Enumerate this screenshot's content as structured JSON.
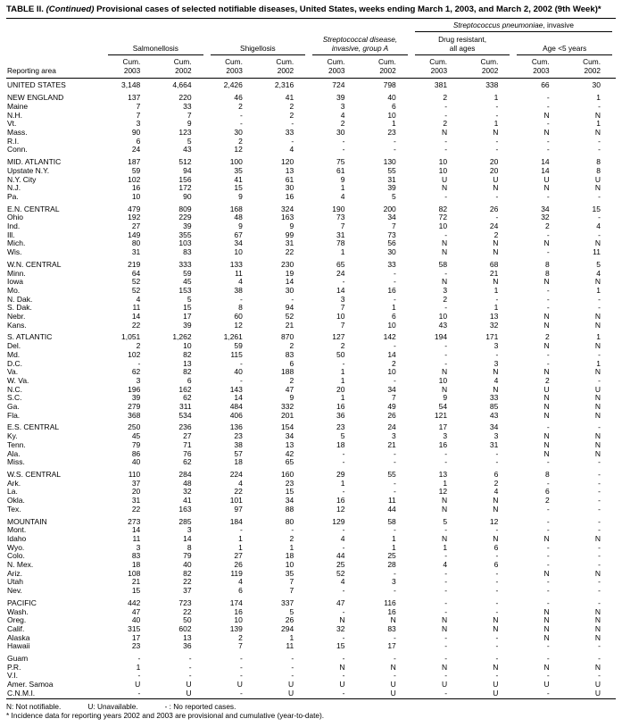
{
  "title": {
    "table_label": "TABLE II.",
    "continued": "(Continued)",
    "rest": "Provisional cases of selected notifiable diseases, United States, weeks ending March 1, 2003, and March 2, 2002 (9th Week)*"
  },
  "header": {
    "reporting_area": "Reporting area",
    "pneumo": {
      "italic": "Streptococcus pneumoniae",
      "rest": ", invasive"
    },
    "groups": [
      {
        "line1": "Salmonellosis"
      },
      {
        "line1": "Shigellosis"
      },
      {
        "line1": "Streptococcal disease,",
        "line2": "invasive, group A"
      },
      {
        "line1": "Drug resistant,",
        "line2": "all ages"
      },
      {
        "line1": "Age <5 years"
      }
    ],
    "cum": "Cum.",
    "years": [
      "2003",
      "2002"
    ]
  },
  "rows": [
    {
      "a": "UNITED STATES",
      "v": [
        "3,148",
        "4,664",
        "2,426",
        "2,316",
        "724",
        "798",
        "381",
        "338",
        "66",
        "30"
      ]
    },
    {
      "gap": true
    },
    {
      "a": "NEW ENGLAND",
      "v": [
        "137",
        "220",
        "46",
        "41",
        "39",
        "40",
        "2",
        "1",
        "-",
        "1"
      ]
    },
    {
      "a": "Maine",
      "v": [
        "7",
        "33",
        "2",
        "2",
        "3",
        "6",
        "-",
        "-",
        "-",
        "-"
      ]
    },
    {
      "a": "N.H.",
      "v": [
        "7",
        "7",
        "-",
        "2",
        "4",
        "10",
        "-",
        "-",
        "N",
        "N"
      ]
    },
    {
      "a": "Vt.",
      "v": [
        "3",
        "9",
        "-",
        "-",
        "2",
        "1",
        "2",
        "1",
        "-",
        "1"
      ]
    },
    {
      "a": "Mass.",
      "v": [
        "90",
        "123",
        "30",
        "33",
        "30",
        "23",
        "N",
        "N",
        "N",
        "N"
      ]
    },
    {
      "a": "R.I.",
      "v": [
        "6",
        "5",
        "2",
        "-",
        "-",
        "-",
        "-",
        "-",
        "-",
        "-"
      ]
    },
    {
      "a": "Conn.",
      "v": [
        "24",
        "43",
        "12",
        "4",
        "-",
        "-",
        "-",
        "-",
        "-",
        "-"
      ]
    },
    {
      "gap": true
    },
    {
      "a": "MID. ATLANTIC",
      "v": [
        "187",
        "512",
        "100",
        "120",
        "75",
        "130",
        "10",
        "20",
        "14",
        "8"
      ]
    },
    {
      "a": "Upstate N.Y.",
      "v": [
        "59",
        "94",
        "35",
        "13",
        "61",
        "55",
        "10",
        "20",
        "14",
        "8"
      ]
    },
    {
      "a": "N.Y. City",
      "v": [
        "102",
        "156",
        "41",
        "61",
        "9",
        "31",
        "U",
        "U",
        "U",
        "U"
      ]
    },
    {
      "a": "N.J.",
      "v": [
        "16",
        "172",
        "15",
        "30",
        "1",
        "39",
        "N",
        "N",
        "N",
        "N"
      ]
    },
    {
      "a": "Pa.",
      "v": [
        "10",
        "90",
        "9",
        "16",
        "4",
        "5",
        "-",
        "-",
        "-",
        "-"
      ]
    },
    {
      "gap": true
    },
    {
      "a": "E.N. CENTRAL",
      "v": [
        "479",
        "809",
        "168",
        "324",
        "190",
        "200",
        "82",
        "26",
        "34",
        "15"
      ]
    },
    {
      "a": "Ohio",
      "v": [
        "192",
        "229",
        "48",
        "163",
        "73",
        "34",
        "72",
        "-",
        "32",
        "-"
      ]
    },
    {
      "a": "Ind.",
      "v": [
        "27",
        "39",
        "9",
        "9",
        "7",
        "7",
        "10",
        "24",
        "2",
        "4"
      ]
    },
    {
      "a": "Ill.",
      "v": [
        "149",
        "355",
        "67",
        "99",
        "31",
        "73",
        "-",
        "2",
        "-",
        "-"
      ]
    },
    {
      "a": "Mich.",
      "v": [
        "80",
        "103",
        "34",
        "31",
        "78",
        "56",
        "N",
        "N",
        "N",
        "N"
      ]
    },
    {
      "a": "Wis.",
      "v": [
        "31",
        "83",
        "10",
        "22",
        "1",
        "30",
        "N",
        "N",
        "-",
        "11"
      ]
    },
    {
      "gap": true
    },
    {
      "a": "W.N. CENTRAL",
      "v": [
        "219",
        "333",
        "133",
        "230",
        "65",
        "33",
        "58",
        "68",
        "8",
        "5"
      ]
    },
    {
      "a": "Minn.",
      "v": [
        "64",
        "59",
        "11",
        "19",
        "24",
        "-",
        "-",
        "21",
        "8",
        "4"
      ]
    },
    {
      "a": "Iowa",
      "v": [
        "52",
        "45",
        "4",
        "14",
        "-",
        "-",
        "N",
        "N",
        "N",
        "N"
      ]
    },
    {
      "a": "Mo.",
      "v": [
        "52",
        "153",
        "38",
        "30",
        "14",
        "16",
        "3",
        "1",
        "-",
        "1"
      ]
    },
    {
      "a": "N. Dak.",
      "v": [
        "4",
        "5",
        "-",
        "-",
        "3",
        "-",
        "2",
        "-",
        "-",
        "-"
      ]
    },
    {
      "a": "S. Dak.",
      "v": [
        "11",
        "15",
        "8",
        "94",
        "7",
        "1",
        "-",
        "1",
        "-",
        "-"
      ]
    },
    {
      "a": "Nebr.",
      "v": [
        "14",
        "17",
        "60",
        "52",
        "10",
        "6",
        "10",
        "13",
        "N",
        "N"
      ]
    },
    {
      "a": "Kans.",
      "v": [
        "22",
        "39",
        "12",
        "21",
        "7",
        "10",
        "43",
        "32",
        "N",
        "N"
      ]
    },
    {
      "gap": true
    },
    {
      "a": "S. ATLANTIC",
      "v": [
        "1,051",
        "1,262",
        "1,261",
        "870",
        "127",
        "142",
        "194",
        "171",
        "2",
        "1"
      ]
    },
    {
      "a": "Del.",
      "v": [
        "2",
        "10",
        "59",
        "2",
        "2",
        "-",
        "-",
        "3",
        "N",
        "N"
      ]
    },
    {
      "a": "Md.",
      "v": [
        "102",
        "82",
        "115",
        "83",
        "50",
        "14",
        "-",
        "-",
        "-",
        "-"
      ]
    },
    {
      "a": "D.C.",
      "v": [
        "-",
        "13",
        "-",
        "6",
        "-",
        "2",
        "-",
        "3",
        "-",
        "1"
      ]
    },
    {
      "a": "Va.",
      "v": [
        "62",
        "82",
        "40",
        "188",
        "1",
        "10",
        "N",
        "N",
        "N",
        "N"
      ]
    },
    {
      "a": "W. Va.",
      "v": [
        "3",
        "6",
        "-",
        "2",
        "1",
        "-",
        "10",
        "4",
        "2",
        "-"
      ]
    },
    {
      "a": "N.C.",
      "v": [
        "196",
        "162",
        "143",
        "47",
        "20",
        "34",
        "N",
        "N",
        "U",
        "U"
      ]
    },
    {
      "a": "S.C.",
      "v": [
        "39",
        "62",
        "14",
        "9",
        "1",
        "7",
        "9",
        "33",
        "N",
        "N"
      ]
    },
    {
      "a": "Ga.",
      "v": [
        "279",
        "311",
        "484",
        "332",
        "16",
        "49",
        "54",
        "85",
        "N",
        "N"
      ]
    },
    {
      "a": "Fla.",
      "v": [
        "368",
        "534",
        "406",
        "201",
        "36",
        "26",
        "121",
        "43",
        "N",
        "N"
      ]
    },
    {
      "gap": true
    },
    {
      "a": "E.S. CENTRAL",
      "v": [
        "250",
        "236",
        "136",
        "154",
        "23",
        "24",
        "17",
        "34",
        "-",
        "-"
      ]
    },
    {
      "a": "Ky.",
      "v": [
        "45",
        "27",
        "23",
        "34",
        "5",
        "3",
        "3",
        "3",
        "N",
        "N"
      ]
    },
    {
      "a": "Tenn.",
      "v": [
        "79",
        "71",
        "38",
        "13",
        "18",
        "21",
        "16",
        "31",
        "N",
        "N"
      ]
    },
    {
      "a": "Ala.",
      "v": [
        "86",
        "76",
        "57",
        "42",
        "-",
        "-",
        "-",
        "-",
        "N",
        "N"
      ]
    },
    {
      "a": "Miss.",
      "v": [
        "40",
        "62",
        "18",
        "65",
        "-",
        "-",
        "-",
        "-",
        "-",
        "-"
      ]
    },
    {
      "gap": true
    },
    {
      "a": "W.S. CENTRAL",
      "v": [
        "110",
        "284",
        "224",
        "160",
        "29",
        "55",
        "13",
        "6",
        "8",
        "-"
      ]
    },
    {
      "a": "Ark.",
      "v": [
        "37",
        "48",
        "4",
        "23",
        "1",
        "-",
        "1",
        "2",
        "-",
        "-"
      ]
    },
    {
      "a": "La.",
      "v": [
        "20",
        "32",
        "22",
        "15",
        "-",
        "-",
        "12",
        "4",
        "6",
        "-"
      ]
    },
    {
      "a": "Okla.",
      "v": [
        "31",
        "41",
        "101",
        "34",
        "16",
        "11",
        "N",
        "N",
        "2",
        "-"
      ]
    },
    {
      "a": "Tex.",
      "v": [
        "22",
        "163",
        "97",
        "88",
        "12",
        "44",
        "N",
        "N",
        "-",
        "-"
      ]
    },
    {
      "gap": true
    },
    {
      "a": "MOUNTAIN",
      "v": [
        "273",
        "285",
        "184",
        "80",
        "129",
        "58",
        "5",
        "12",
        "-",
        "-"
      ]
    },
    {
      "a": "Mont.",
      "v": [
        "14",
        "3",
        "-",
        "-",
        "-",
        "-",
        "-",
        "-",
        "-",
        "-"
      ]
    },
    {
      "a": "Idaho",
      "v": [
        "11",
        "14",
        "1",
        "2",
        "4",
        "1",
        "N",
        "N",
        "N",
        "N"
      ]
    },
    {
      "a": "Wyo.",
      "v": [
        "3",
        "8",
        "1",
        "1",
        "-",
        "1",
        "1",
        "6",
        "-",
        "-"
      ]
    },
    {
      "a": "Colo.",
      "v": [
        "83",
        "79",
        "27",
        "18",
        "44",
        "25",
        "-",
        "-",
        "-",
        "-"
      ]
    },
    {
      "a": "N. Mex.",
      "v": [
        "18",
        "40",
        "26",
        "10",
        "25",
        "28",
        "4",
        "6",
        "-",
        "-"
      ]
    },
    {
      "a": "Ariz.",
      "v": [
        "108",
        "82",
        "119",
        "35",
        "52",
        "-",
        "-",
        "-",
        "N",
        "N"
      ]
    },
    {
      "a": "Utah",
      "v": [
        "21",
        "22",
        "4",
        "7",
        "4",
        "3",
        "-",
        "-",
        "-",
        "-"
      ]
    },
    {
      "a": "Nev.",
      "v": [
        "15",
        "37",
        "6",
        "7",
        "-",
        "-",
        "-",
        "-",
        "-",
        "-"
      ]
    },
    {
      "gap": true
    },
    {
      "a": "PACIFIC",
      "v": [
        "442",
        "723",
        "174",
        "337",
        "47",
        "116",
        "-",
        "-",
        "-",
        "-"
      ]
    },
    {
      "a": "Wash.",
      "v": [
        "47",
        "22",
        "16",
        "5",
        "-",
        "16",
        "-",
        "-",
        "N",
        "N"
      ]
    },
    {
      "a": "Oreg.",
      "v": [
        "40",
        "50",
        "10",
        "26",
        "N",
        "N",
        "N",
        "N",
        "N",
        "N"
      ]
    },
    {
      "a": "Calif.",
      "v": [
        "315",
        "602",
        "139",
        "294",
        "32",
        "83",
        "N",
        "N",
        "N",
        "N"
      ]
    },
    {
      "a": "Alaska",
      "v": [
        "17",
        "13",
        "2",
        "1",
        "-",
        "-",
        "-",
        "-",
        "N",
        "N"
      ]
    },
    {
      "a": "Hawaii",
      "v": [
        "23",
        "36",
        "7",
        "11",
        "15",
        "17",
        "-",
        "-",
        "-",
        "-"
      ]
    },
    {
      "gap": true
    },
    {
      "a": "Guam",
      "v": [
        "-",
        "-",
        "-",
        "-",
        "-",
        "-",
        "-",
        "-",
        "-",
        "-"
      ]
    },
    {
      "a": "P.R.",
      "v": [
        "1",
        "-",
        "-",
        "-",
        "N",
        "N",
        "N",
        "N",
        "N",
        "N"
      ]
    },
    {
      "a": "V.I.",
      "v": [
        "-",
        "-",
        "-",
        "-",
        "-",
        "-",
        "-",
        "-",
        "-",
        "-"
      ]
    },
    {
      "a": "Amer. Samoa",
      "v": [
        "U",
        "U",
        "U",
        "U",
        "U",
        "U",
        "U",
        "U",
        "U",
        "U"
      ]
    },
    {
      "a": "C.N.M.I.",
      "v": [
        "-",
        "U",
        "-",
        "U",
        "-",
        "U",
        "-",
        "U",
        "-",
        "U"
      ]
    }
  ],
  "footnotes": {
    "n": "N: Not notifiable.",
    "u": "U: Unavailable.",
    "dash": "- : No reported cases.",
    "incidence": "* Incidence data for reporting years 2002 and 2003 are provisional and cumulative (year-to-date)."
  }
}
